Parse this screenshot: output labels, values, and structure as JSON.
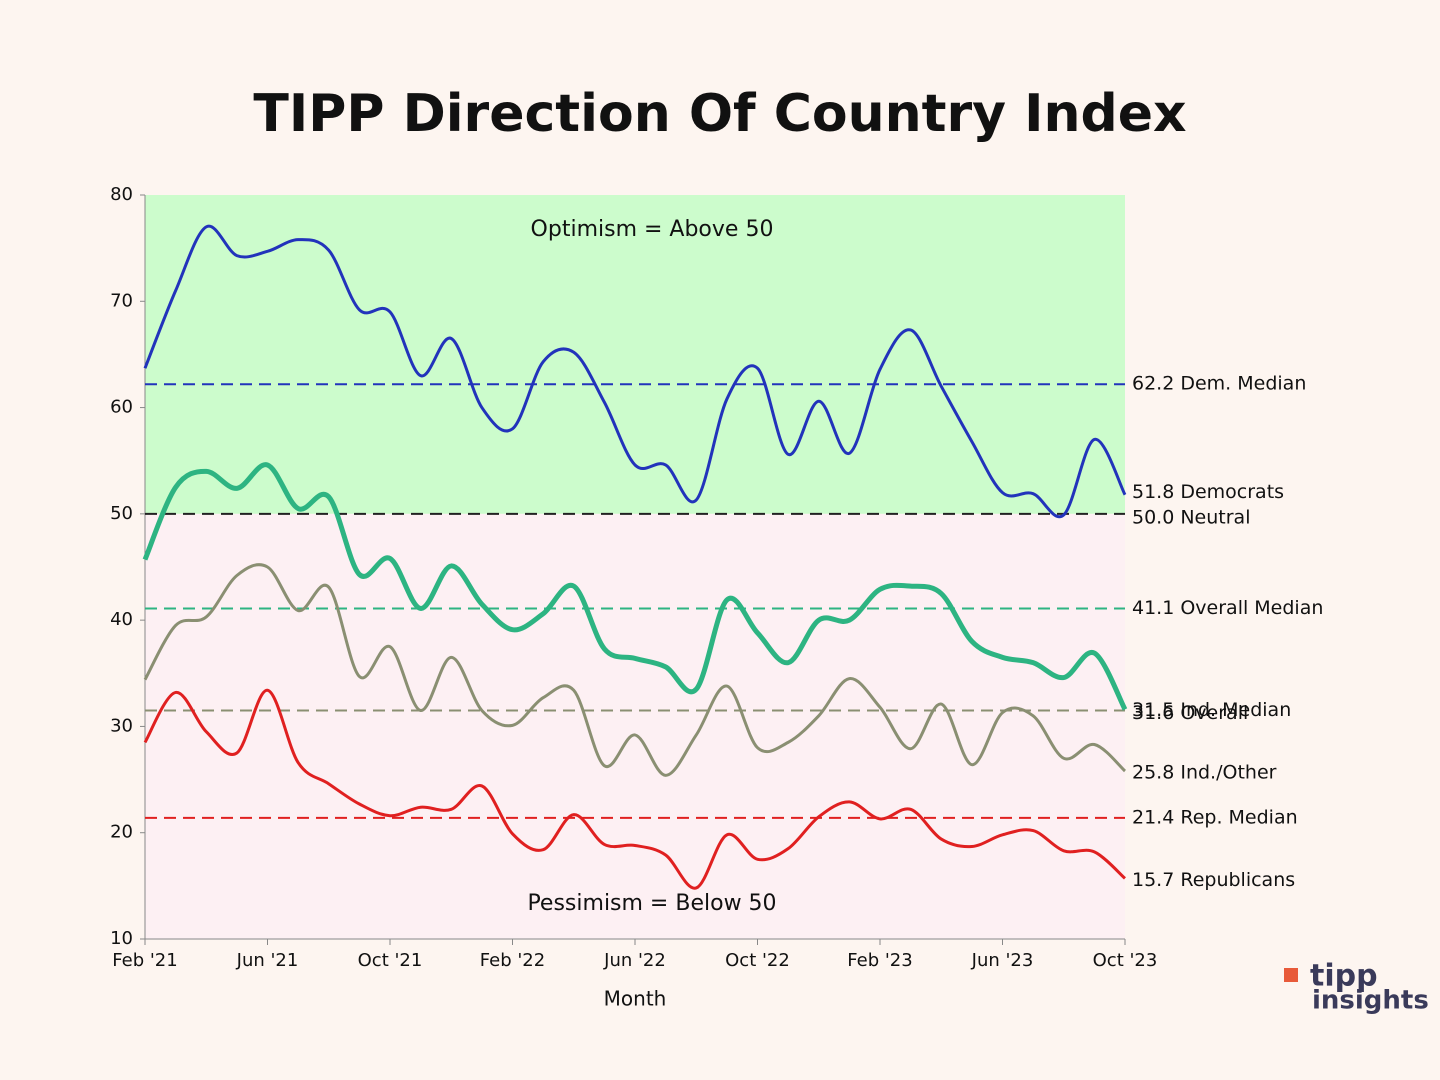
{
  "chart_data": {
    "type": "line",
    "title": "TIPP Direction Of Country Index",
    "x_label": "Month",
    "categories": [
      "Feb '21",
      null,
      null,
      null,
      "Jun '21",
      null,
      null,
      null,
      "Oct '21",
      null,
      null,
      null,
      "Feb '22",
      null,
      null,
      null,
      "Jun '22",
      null,
      null,
      null,
      "Oct '22",
      null,
      null,
      null,
      "Feb '23",
      null,
      null,
      null,
      "Jun '23",
      null,
      null,
      null,
      "Oct '23"
    ],
    "ylim": [
      10,
      80
    ],
    "yticks": [
      10,
      20,
      30,
      40,
      50,
      60,
      70,
      80
    ],
    "zones": [
      {
        "from": 50,
        "to": 80,
        "color": "#ccfccc",
        "label": "Optimism = Above 50"
      },
      {
        "from": 10,
        "to": 50,
        "color": "#fdf0f3",
        "label": "Pessimism = Below 50"
      }
    ],
    "reference_lines": [
      {
        "value": 62.2,
        "label": "62.2 Dem. Median",
        "color": "#2233bb"
      },
      {
        "value": 50.0,
        "label": "50.0 Neutral",
        "color": "#222222"
      },
      {
        "value": 41.1,
        "label": "41.1 Overall Median",
        "color": "#2db482"
      },
      {
        "value": 31.5,
        "label": "31.5 Ind. Median",
        "color": "#8a8f72"
      },
      {
        "value": 21.4,
        "label": "21.4 Rep. Median",
        "color": "#e02020"
      }
    ],
    "series": [
      {
        "name": "51.8 Democrats",
        "color": "#2233bb",
        "width": 3,
        "values": [
          63.7,
          71,
          77,
          74.3,
          74.7,
          75.8,
          74.8,
          69.2,
          69,
          63,
          66.5,
          60,
          58,
          64.3,
          65.2,
          60.5,
          54.6,
          54.6,
          51.3,
          60.8,
          63.7,
          55.6,
          60.6,
          55.7,
          63.6,
          67.3,
          62,
          56.8,
          52,
          51.9,
          49.9,
          57,
          51.8
        ]
      },
      {
        "name": "31.6 Overall",
        "color": "#2db482",
        "width": 5,
        "values": [
          45.7,
          52.5,
          54,
          52.4,
          54.6,
          50.5,
          51.6,
          44.3,
          45.8,
          41.1,
          45.1,
          41.5,
          39.1,
          40.6,
          43.2,
          37.3,
          36.4,
          35.6,
          33.5,
          41.9,
          38.8,
          36,
          40,
          40,
          42.9,
          43.2,
          42.5,
          38,
          36.5,
          36,
          34.6,
          36.9,
          31.6
        ]
      },
      {
        "name": "25.8 Ind./Other",
        "color": "#8a8f72",
        "width": 3,
        "values": [
          34.4,
          39.5,
          40.3,
          44.2,
          45,
          40.9,
          43.1,
          34.7,
          37.5,
          31.5,
          36.5,
          31.5,
          30.1,
          32.7,
          33.4,
          26.3,
          29.2,
          25.4,
          29.2,
          33.8,
          28,
          28.5,
          31,
          34.5,
          31.8,
          27.9,
          32.1,
          26.4,
          31.3,
          31,
          27,
          28.3,
          25.8
        ]
      },
      {
        "name": "15.7 Republicans",
        "color": "#e02020",
        "width": 3,
        "values": [
          28.5,
          33.2,
          29.5,
          27.5,
          33.4,
          26.6,
          24.6,
          22.7,
          21.6,
          22.4,
          22.2,
          24.4,
          19.9,
          18.4,
          21.7,
          18.9,
          18.8,
          17.9,
          14.8,
          19.8,
          17.5,
          18.5,
          21.5,
          22.9,
          21.3,
          22.2,
          19.4,
          18.7,
          19.8,
          20.2,
          18.3,
          18.2,
          15.7
        ]
      }
    ],
    "logo": {
      "line1": "tipp",
      "line2": "insights"
    }
  }
}
